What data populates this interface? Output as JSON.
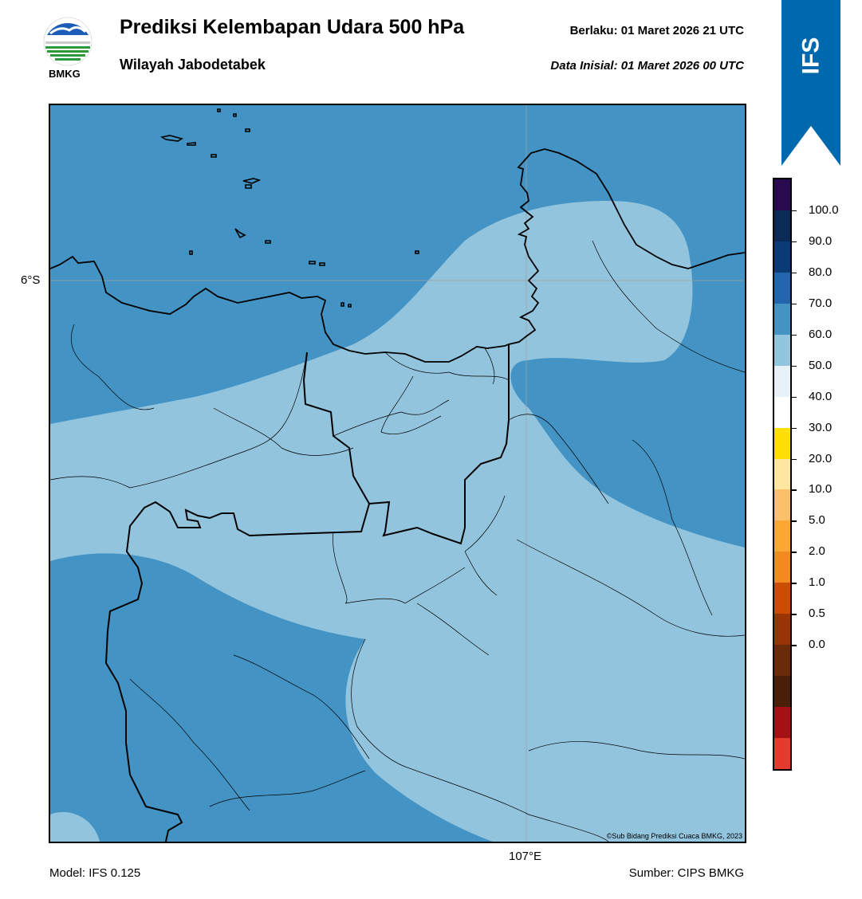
{
  "header": {
    "title": "Prediksi Kelembapan Udara 500 hPa",
    "subtitle": "Wilayah Jabodetabek",
    "valid_label": "Berlaku:  01 Maret 2026 21 UTC",
    "init_label": "Data Inisial:  01 Maret 2026 00 UTC"
  },
  "logo": {
    "text": "BMKG"
  },
  "banner": {
    "text": "IFS",
    "color": "#0068ad"
  },
  "map": {
    "lat_label": "6°S",
    "lon_label": "107°E",
    "copyright": "©Sub Bidang Prediksi Cuaca BMKG, 2023",
    "fill_colors": {
      "band_70_80": "#4393c4",
      "band_60_70": "#92c4de",
      "gridline": "#a0a0a0"
    }
  },
  "footer": {
    "model": "Model: IFS 0.125",
    "source": "Sumber: CIPS BMKG"
  },
  "colorbar": {
    "labels": [
      "100.0",
      "90.0",
      "80.0",
      "70.0",
      "60.0",
      "50.0",
      "40.0",
      "30.0",
      "20.0",
      "10.0",
      "5.0",
      "2.0",
      "1.0",
      "0.5",
      "0.0"
    ],
    "colors_top_to_bottom": [
      "#2a0a4e",
      "#0c2a56",
      "#0a3b78",
      "#2166ac",
      "#4393c3",
      "#92c5de",
      "#e8f0f8",
      "#ffffff",
      "#ffe000",
      "#ffe7a0",
      "#fdc06a",
      "#fba832",
      "#f28a1e",
      "#cc4c02",
      "#993404",
      "#6b2a0a",
      "#4a1f0a",
      "#a50f15",
      "#e63a2c"
    ]
  }
}
